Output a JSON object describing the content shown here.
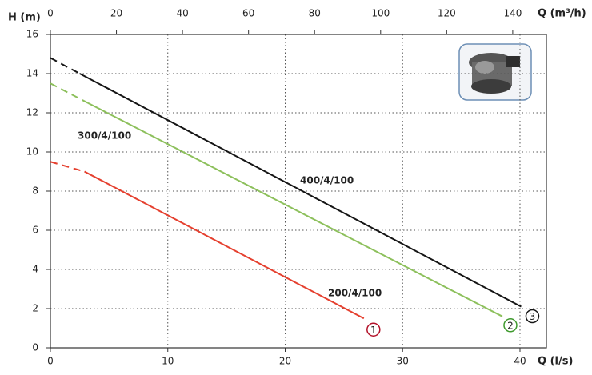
{
  "chart_data": {
    "type": "line",
    "ylabel": "H (m)",
    "xlabel": "Q (l/s)",
    "x2label": "Q (m³/h)",
    "xlim": [
      0,
      42.25
    ],
    "xticks": [
      0,
      10,
      20,
      30,
      40
    ],
    "x2lim": [
      0,
      150.2
    ],
    "x2ticks": [
      0,
      20,
      40,
      60,
      80,
      100,
      120,
      140
    ],
    "ylim": [
      0,
      16
    ],
    "yticks": [
      0,
      2,
      4,
      6,
      8,
      10,
      12,
      14,
      16
    ],
    "grid": true,
    "series": [
      {
        "name": "200/4/100",
        "color": "#e5402f",
        "label_color": "#b3122a",
        "end_marker": "1",
        "x": [
          0,
          2.9,
          26.7
        ],
        "values": [
          9.5,
          9.0,
          1.5
        ]
      },
      {
        "name": "300/4/100",
        "color": "#8dc05c",
        "label_color": "#3f9a2e",
        "end_marker": "2",
        "x": [
          0,
          3.2,
          38.5
        ],
        "values": [
          13.5,
          12.5,
          1.6
        ]
      },
      {
        "name": "400/4/100",
        "color": "#151515",
        "label_color": "#151515",
        "end_marker": "3",
        "x": [
          0,
          2.5,
          40.1
        ],
        "values": [
          14.8,
          14.0,
          2.1
        ]
      }
    ]
  }
}
